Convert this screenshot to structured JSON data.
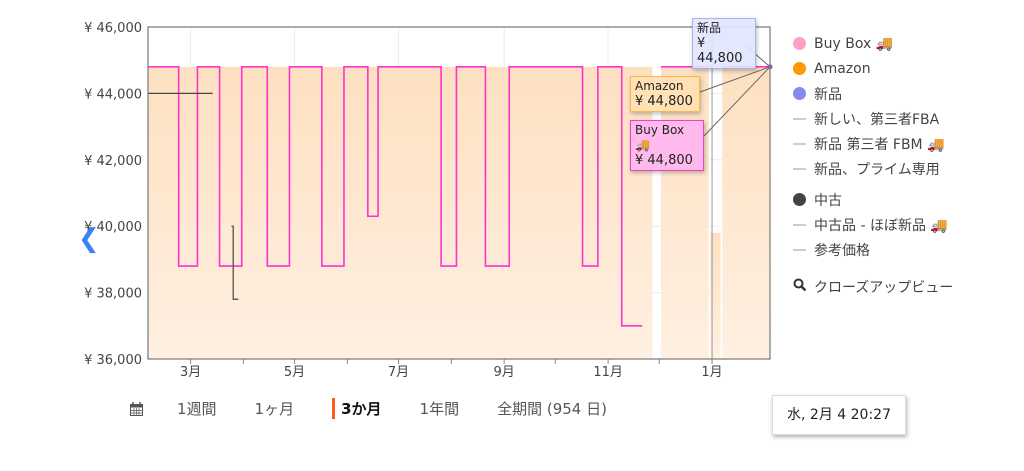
{
  "chart_data": {
    "type": "line",
    "ylim": [
      36000,
      46000
    ],
    "xlim": [
      "2025-02-04",
      "2026-02-04"
    ],
    "y_ticks": [
      "¥ 46,000",
      "¥ 44,000",
      "¥ 42,000",
      "¥ 40,000",
      "¥ 38,000",
      "¥ 36,000"
    ],
    "y_tick_values": [
      46000,
      44000,
      42000,
      40000,
      38000,
      36000
    ],
    "x_ticks": [
      {
        "date": "2025-03-01",
        "label": "3月"
      },
      {
        "date": "2025-05-01",
        "label": "5月"
      },
      {
        "date": "2025-07-01",
        "label": "7月"
      },
      {
        "date": "2025-09-01",
        "label": "9月"
      },
      {
        "date": "2025-11-01",
        "label": "11月"
      },
      {
        "date": "2026-01-01",
        "label": "1月"
      }
    ],
    "minor_x_ticks": [
      "2025-04-01",
      "2025-06-01",
      "2025-08-01",
      "2025-10-01",
      "2025-12-01"
    ],
    "grid": true,
    "series": [
      {
        "name": "Amazon",
        "color": "#ff9900",
        "style": "area",
        "segments": [
          [
            [
              "2025-02-04",
              44800
            ],
            [
              "2025-11-27",
              44800
            ]
          ],
          [
            [
              "2025-12-02",
              44800
            ],
            [
              "2025-12-30",
              44800
            ]
          ],
          [
            [
              "2025-12-31",
              39800
            ],
            [
              "2026-01-06",
              39800
            ]
          ],
          [
            [
              "2026-01-07",
              44800
            ],
            [
              "2026-02-04",
              44800
            ]
          ]
        ]
      },
      {
        "name": "Buy Box",
        "color": "#ff33cc",
        "style": "step",
        "segments": [
          [
            [
              "2025-02-04",
              44800
            ],
            [
              "2025-02-22",
              38800
            ],
            [
              "2025-03-05",
              44800
            ],
            [
              "2025-03-18",
              38800
            ],
            [
              "2025-03-31",
              44800
            ],
            [
              "2025-04-15",
              38800
            ],
            [
              "2025-04-28",
              44800
            ],
            [
              "2025-05-17",
              38800
            ],
            [
              "2025-05-30",
              44800
            ],
            [
              "2025-06-13",
              40300
            ],
            [
              "2025-06-19",
              44800
            ],
            [
              "2025-07-26",
              38800
            ],
            [
              "2025-08-04",
              44800
            ],
            [
              "2025-08-21",
              38800
            ],
            [
              "2025-09-04",
              44800
            ],
            [
              "2025-10-17",
              38800
            ],
            [
              "2025-10-26",
              44800
            ],
            [
              "2025-11-09",
              37000
            ],
            [
              "2025-11-21",
              37000
            ]
          ],
          [
            [
              "2025-12-02",
              44800
            ],
            [
              "2025-12-30",
              44800
            ]
          ],
          [
            [
              "2026-01-07",
              44800
            ],
            [
              "2026-02-04",
              44800
            ]
          ]
        ]
      },
      {
        "name": "中古",
        "color": "#444444",
        "style": "step",
        "segments": [
          [
            [
              "2025-02-04",
              44000
            ],
            [
              "2025-03-14",
              44000
            ]
          ],
          [
            [
              "2025-03-25",
              40000
            ],
            [
              "2025-03-26",
              37800
            ],
            [
              "2025-03-29",
              37800
            ]
          ]
        ]
      }
    ],
    "cursor_date": "2026-01-01"
  },
  "tooltips": {
    "new": {
      "label": "新品",
      "value": "¥ 44,800",
      "color": "#a8b0ee"
    },
    "amazon": {
      "label": "Amazon",
      "value": "¥ 44,800",
      "color": "#f6b94a"
    },
    "buybox": {
      "label": "Buy Box 🚚",
      "value": "¥ 44,800",
      "color": "#f040c8"
    }
  },
  "legend": [
    {
      "label": "Buy Box 🚚",
      "marker": "dot",
      "color": "#ff9fc8"
    },
    {
      "label": "Amazon",
      "marker": "dot",
      "color": "#ff9900"
    },
    {
      "label": "新品",
      "marker": "dot",
      "color": "#8888ee"
    },
    {
      "label": "新しい、第三者FBA",
      "marker": "dash",
      "color": "#cccccc"
    },
    {
      "label": "新品 第三者 FBM 🚚",
      "marker": "dash",
      "color": "#cccccc"
    },
    {
      "label": "新品、プライム専用",
      "marker": "dash",
      "color": "#cccccc"
    },
    {
      "label": "中古",
      "marker": "dot",
      "color": "#444444"
    },
    {
      "label": "中古品 - ほぼ新品 🚚",
      "marker": "dash",
      "color": "#cccccc"
    },
    {
      "label": "参考価格",
      "marker": "dash",
      "color": "#cccccc"
    }
  ],
  "closeup": {
    "label": "クローズアップビュー",
    "icon": "search-icon"
  },
  "range": {
    "icon": "calendar-icon",
    "options": [
      "1週間",
      "1ヶ月",
      "3か月",
      "1年間",
      "全期間 (954 日)"
    ],
    "selected": "3か月",
    "accent": "#ff5a1f"
  },
  "cursor_label": "水, 2月 4 20:27",
  "nav": {
    "icon": "chevron-left-icon"
  }
}
